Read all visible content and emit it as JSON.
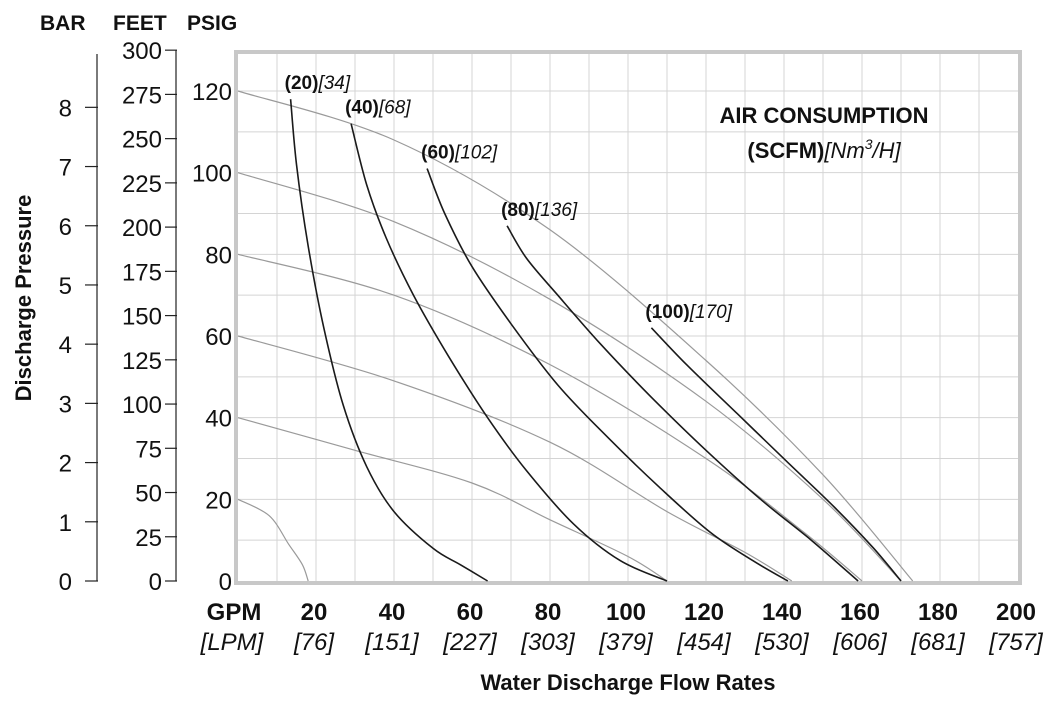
{
  "chart_data": {
    "type": "line",
    "title": "AIR CONSUMPTION",
    "subtitle_bold": "(SCFM)",
    "subtitle_italic": "[Nm3/H]",
    "subtitle_unit_pre": "[Nm",
    "subtitle_unit_sup": "3",
    "subtitle_unit_post": "/H]",
    "xlabel": "Water Discharge Flow Rates",
    "ylabel": "Discharge Pressure",
    "x_unit_primary": "GPM",
    "x_unit_secondary": "[LPM]",
    "xlim": [
      0,
      200
    ],
    "ylim": [
      0,
      120
    ],
    "x_ticks": [
      {
        "gpm": "20",
        "lpm": "[76]",
        "x": 20
      },
      {
        "gpm": "40",
        "lpm": "[151]",
        "x": 40
      },
      {
        "gpm": "60",
        "lpm": "[227]",
        "x": 60
      },
      {
        "gpm": "80",
        "lpm": "[303]",
        "x": 80
      },
      {
        "gpm": "100",
        "lpm": "[379]",
        "x": 100
      },
      {
        "gpm": "120",
        "lpm": "[454]",
        "x": 120
      },
      {
        "gpm": "140",
        "lpm": "[530]",
        "x": 140
      },
      {
        "gpm": "160",
        "lpm": "[606]",
        "x": 160
      },
      {
        "gpm": "180",
        "lpm": "[681]",
        "x": 180
      },
      {
        "gpm": "200",
        "lpm": "[757]",
        "x": 200
      }
    ],
    "psig_ticks": [
      {
        "label": "0",
        "y": 0
      },
      {
        "label": "20",
        "y": 20
      },
      {
        "label": "40",
        "y": 40
      },
      {
        "label": "60",
        "y": 60
      },
      {
        "label": "80",
        "y": 80
      },
      {
        "label": "100",
        "y": 100
      },
      {
        "label": "120",
        "y": 120
      }
    ],
    "feet_ticks": [
      {
        "label": "0",
        "ft": 0
      },
      {
        "label": "25",
        "ft": 25
      },
      {
        "label": "50",
        "ft": 50
      },
      {
        "label": "75",
        "ft": 75
      },
      {
        "label": "100",
        "ft": 100
      },
      {
        "label": "125",
        "ft": 125
      },
      {
        "label": "150",
        "ft": 150
      },
      {
        "label": "175",
        "ft": 175
      },
      {
        "label": "200",
        "ft": 200
      },
      {
        "label": "225",
        "ft": 225
      },
      {
        "label": "250",
        "ft": 250
      },
      {
        "label": "275",
        "ft": 275
      },
      {
        "label": "300",
        "ft": 300
      }
    ],
    "bar_ticks": [
      {
        "label": "0",
        "bar": 0
      },
      {
        "label": "1",
        "bar": 1
      },
      {
        "label": "2",
        "bar": 2
      },
      {
        "label": "3",
        "bar": 3
      },
      {
        "label": "4",
        "bar": 4
      },
      {
        "label": "5",
        "bar": 5
      },
      {
        "label": "6",
        "bar": 6
      },
      {
        "label": "7",
        "bar": 7
      },
      {
        "label": "8",
        "bar": 8
      }
    ],
    "axis_headers": {
      "bar": "BAR",
      "feet": "FEET",
      "psig": "PSIG"
    },
    "grid": true,
    "air_consumption_curves": [
      {
        "label_bold": "(20)",
        "label_italic": "[34]",
        "points": [
          [
            13.5,
            118
          ],
          [
            15,
            102
          ],
          [
            18,
            82
          ],
          [
            22,
            62
          ],
          [
            27,
            43
          ],
          [
            33,
            28
          ],
          [
            40,
            17
          ],
          [
            50,
            8
          ],
          [
            57,
            4
          ],
          [
            64,
            0
          ]
        ]
      },
      {
        "label_bold": "(40)",
        "label_italic": "[68]",
        "points": [
          [
            29,
            112
          ],
          [
            33,
            97
          ],
          [
            38,
            84
          ],
          [
            45,
            70
          ],
          [
            54,
            55
          ],
          [
            64,
            40
          ],
          [
            74,
            27
          ],
          [
            86,
            14
          ],
          [
            98,
            5
          ],
          [
            110,
            0
          ]
        ]
      },
      {
        "label_bold": "(60)",
        "label_italic": "[102]",
        "points": [
          [
            48.5,
            101
          ],
          [
            53,
            90
          ],
          [
            60,
            77
          ],
          [
            70,
            63
          ],
          [
            82,
            48
          ],
          [
            95,
            35
          ],
          [
            108,
            23
          ],
          [
            121,
            12
          ],
          [
            132,
            5
          ],
          [
            141,
            0
          ]
        ]
      },
      {
        "label_bold": "(80)",
        "label_italic": "[136]",
        "points": [
          [
            69,
            87
          ],
          [
            74,
            79
          ],
          [
            82,
            70
          ],
          [
            93,
            58
          ],
          [
            106,
            45
          ],
          [
            120,
            32
          ],
          [
            134,
            20
          ],
          [
            147,
            10
          ],
          [
            159,
            0
          ]
        ]
      },
      {
        "label_bold": "(100)",
        "label_italic": "[170]",
        "points": [
          [
            106,
            62
          ],
          [
            115,
            53
          ],
          [
            128,
            41
          ],
          [
            141,
            29
          ],
          [
            153,
            18
          ],
          [
            163,
            8
          ],
          [
            170,
            0
          ]
        ]
      }
    ],
    "pressure_lines": [
      {
        "start_psig": 120,
        "points": [
          [
            0,
            120
          ],
          [
            40,
            108
          ],
          [
            80,
            86
          ],
          [
            120,
            54
          ],
          [
            150,
            26
          ],
          [
            173,
            0
          ]
        ]
      },
      {
        "start_psig": 100,
        "points": [
          [
            0,
            100
          ],
          [
            40,
            88
          ],
          [
            80,
            69
          ],
          [
            120,
            44
          ],
          [
            150,
            20
          ],
          [
            170,
            0
          ]
        ]
      },
      {
        "start_psig": 80,
        "points": [
          [
            0,
            80
          ],
          [
            40,
            70
          ],
          [
            80,
            53
          ],
          [
            120,
            30
          ],
          [
            145,
            12
          ],
          [
            160,
            0
          ]
        ]
      },
      {
        "start_psig": 60,
        "points": [
          [
            0,
            60
          ],
          [
            40,
            49
          ],
          [
            80,
            34
          ],
          [
            110,
            17
          ],
          [
            130,
            7
          ],
          [
            142,
            0
          ]
        ]
      },
      {
        "start_psig": 40,
        "points": [
          [
            0,
            40
          ],
          [
            30,
            32
          ],
          [
            60,
            24
          ],
          [
            80,
            15
          ],
          [
            100,
            6
          ],
          [
            110,
            0
          ]
        ]
      },
      {
        "start_psig": 20,
        "points": [
          [
            0,
            20
          ],
          [
            8,
            16
          ],
          [
            13,
            9
          ],
          [
            16.5,
            4
          ],
          [
            18,
            0
          ]
        ]
      }
    ],
    "colors": {
      "frame": "#c8c8c8",
      "grid": "#d4d4d4",
      "curve": "#1a1a1a",
      "pressure_line": "#9a9a9a",
      "text": "#111111"
    }
  }
}
